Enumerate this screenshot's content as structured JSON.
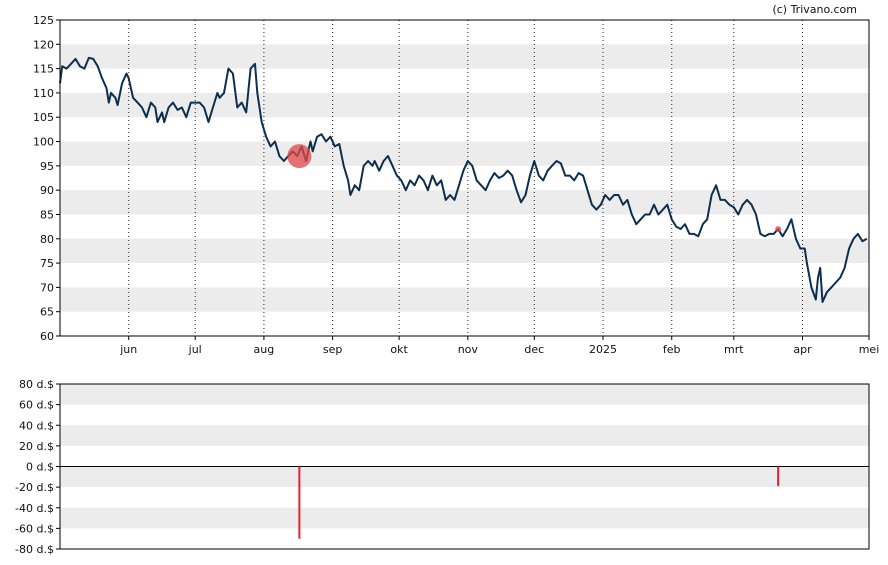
{
  "credit": "(c) Trivano.com",
  "colors": {
    "price_line": "#0d2f4f",
    "band": "#ececec",
    "event_marker": "#e04848",
    "volume_bar": "#e8202c",
    "axis": "#000000"
  },
  "chart_data": [
    {
      "type": "line",
      "title": "",
      "ylim": [
        60,
        125
      ],
      "y_ticks": [
        "60",
        "65",
        "70",
        "75",
        "80",
        "85",
        "90",
        "95",
        "100",
        "105",
        "110",
        "115",
        "120",
        "125"
      ],
      "x_ticks": [
        {
          "label": "jun",
          "date": "2024-06-01"
        },
        {
          "label": "jul",
          "date": "2024-07-01"
        },
        {
          "label": "aug",
          "date": "2024-08-01"
        },
        {
          "label": "sep",
          "date": "2024-09-01"
        },
        {
          "label": "okt",
          "date": "2024-10-01"
        },
        {
          "label": "nov",
          "date": "2024-11-01"
        },
        {
          "label": "dec",
          "date": "2024-12-01"
        },
        {
          "label": "2025",
          "date": "2025-01-01"
        },
        {
          "label": "feb",
          "date": "2025-02-01"
        },
        {
          "label": "mrt",
          "date": "2025-03-01"
        },
        {
          "label": "apr",
          "date": "2025-04-01"
        },
        {
          "label": "mei",
          "date": "2025-05-01"
        }
      ],
      "xlim": [
        "2024-05-01",
        "2025-05-01"
      ],
      "grid": "vertical dotted at month starts, alternating horizontal bands",
      "series": [
        {
          "points": [
            [
              "2024-05-01",
              112
            ],
            [
              "2024-05-02",
              115.5
            ],
            [
              "2024-05-04",
              115
            ],
            [
              "2024-05-06",
              116
            ],
            [
              "2024-05-08",
              117
            ],
            [
              "2024-05-10",
              115.5
            ],
            [
              "2024-05-12",
              115
            ],
            [
              "2024-05-14",
              117.2
            ],
            [
              "2024-05-16",
              117
            ],
            [
              "2024-05-18",
              115.5
            ],
            [
              "2024-05-20",
              113
            ],
            [
              "2024-05-22",
              111
            ],
            [
              "2024-05-23",
              108
            ],
            [
              "2024-05-24",
              110
            ],
            [
              "2024-05-26",
              109
            ],
            [
              "2024-05-27",
              107.5
            ],
            [
              "2024-05-29",
              112
            ],
            [
              "2024-05-31",
              114
            ],
            [
              "2024-06-01",
              113
            ],
            [
              "2024-06-03",
              109
            ],
            [
              "2024-06-05",
              108
            ],
            [
              "2024-06-07",
              107
            ],
            [
              "2024-06-09",
              105
            ],
            [
              "2024-06-11",
              108
            ],
            [
              "2024-06-13",
              107
            ],
            [
              "2024-06-14",
              104
            ],
            [
              "2024-06-16",
              106
            ],
            [
              "2024-06-17",
              104
            ],
            [
              "2024-06-19",
              107
            ],
            [
              "2024-06-21",
              108
            ],
            [
              "2024-06-23",
              106.5
            ],
            [
              "2024-06-25",
              107
            ],
            [
              "2024-06-27",
              105
            ],
            [
              "2024-06-29",
              108
            ],
            [
              "2024-07-01",
              108
            ],
            [
              "2024-07-03",
              108
            ],
            [
              "2024-07-05",
              107
            ],
            [
              "2024-07-07",
              104
            ],
            [
              "2024-07-09",
              107
            ],
            [
              "2024-07-11",
              110
            ],
            [
              "2024-07-12",
              109
            ],
            [
              "2024-07-14",
              110
            ],
            [
              "2024-07-16",
              115
            ],
            [
              "2024-07-18",
              114
            ],
            [
              "2024-07-20",
              107
            ],
            [
              "2024-07-22",
              108
            ],
            [
              "2024-07-24",
              106
            ],
            [
              "2024-07-26",
              115
            ],
            [
              "2024-07-28",
              116
            ],
            [
              "2024-07-29",
              110
            ],
            [
              "2024-07-31",
              104
            ],
            [
              "2024-08-02",
              101
            ],
            [
              "2024-08-04",
              99
            ],
            [
              "2024-08-06",
              100
            ],
            [
              "2024-08-08",
              97
            ],
            [
              "2024-08-10",
              96
            ],
            [
              "2024-08-12",
              97
            ],
            [
              "2024-08-14",
              98
            ],
            [
              "2024-08-16",
              97
            ],
            [
              "2024-08-18",
              99
            ],
            [
              "2024-08-20",
              96
            ],
            [
              "2024-08-22",
              100
            ],
            [
              "2024-08-23",
              98
            ],
            [
              "2024-08-25",
              101
            ],
            [
              "2024-08-27",
              101.5
            ],
            [
              "2024-08-29",
              100
            ],
            [
              "2024-08-31",
              101
            ],
            [
              "2024-09-02",
              99
            ],
            [
              "2024-09-04",
              99.5
            ],
            [
              "2024-09-06",
              95
            ],
            [
              "2024-09-08",
              92
            ],
            [
              "2024-09-09",
              89
            ],
            [
              "2024-09-11",
              91
            ],
            [
              "2024-09-13",
              90
            ],
            [
              "2024-09-15",
              95
            ],
            [
              "2024-09-17",
              96
            ],
            [
              "2024-09-19",
              95
            ],
            [
              "2024-09-20",
              96
            ],
            [
              "2024-09-22",
              94
            ],
            [
              "2024-09-24",
              96
            ],
            [
              "2024-09-26",
              97
            ],
            [
              "2024-09-28",
              95
            ],
            [
              "2024-09-30",
              93
            ],
            [
              "2024-10-02",
              92
            ],
            [
              "2024-10-04",
              90
            ],
            [
              "2024-10-06",
              92
            ],
            [
              "2024-10-08",
              91
            ],
            [
              "2024-10-10",
              93
            ],
            [
              "2024-10-12",
              92
            ],
            [
              "2024-10-14",
              90
            ],
            [
              "2024-10-16",
              93
            ],
            [
              "2024-10-18",
              91
            ],
            [
              "2024-10-20",
              92
            ],
            [
              "2024-10-22",
              88
            ],
            [
              "2024-10-24",
              89
            ],
            [
              "2024-10-26",
              88
            ],
            [
              "2024-10-28",
              91
            ],
            [
              "2024-10-30",
              94
            ],
            [
              "2024-11-01",
              96
            ],
            [
              "2024-11-03",
              95
            ],
            [
              "2024-11-05",
              92
            ],
            [
              "2024-11-07",
              91
            ],
            [
              "2024-11-09",
              90
            ],
            [
              "2024-11-11",
              92
            ],
            [
              "2024-11-13",
              93.5
            ],
            [
              "2024-11-15",
              92.5
            ],
            [
              "2024-11-17",
              93
            ],
            [
              "2024-11-19",
              94
            ],
            [
              "2024-11-21",
              93
            ],
            [
              "2024-11-23",
              90
            ],
            [
              "2024-11-25",
              87.5
            ],
            [
              "2024-11-27",
              89
            ],
            [
              "2024-11-29",
              93
            ],
            [
              "2024-12-01",
              96
            ],
            [
              "2024-12-03",
              93
            ],
            [
              "2024-12-05",
              92
            ],
            [
              "2024-12-07",
              94
            ],
            [
              "2024-12-09",
              95
            ],
            [
              "2024-12-11",
              96
            ],
            [
              "2024-12-13",
              95.5
            ],
            [
              "2024-12-15",
              93
            ],
            [
              "2024-12-17",
              93
            ],
            [
              "2024-12-19",
              92
            ],
            [
              "2024-12-21",
              93.5
            ],
            [
              "2024-12-23",
              93
            ],
            [
              "2024-12-25",
              90
            ],
            [
              "2024-12-27",
              87
            ],
            [
              "2024-12-29",
              86
            ],
            [
              "2024-12-31",
              87
            ],
            [
              "2025-01-02",
              89
            ],
            [
              "2025-01-04",
              88
            ],
            [
              "2025-01-06",
              89
            ],
            [
              "2025-01-08",
              89
            ],
            [
              "2025-01-10",
              87
            ],
            [
              "2025-01-12",
              88
            ],
            [
              "2025-01-14",
              85
            ],
            [
              "2025-01-16",
              83
            ],
            [
              "2025-01-18",
              84
            ],
            [
              "2025-01-20",
              85
            ],
            [
              "2025-01-22",
              85
            ],
            [
              "2025-01-24",
              87
            ],
            [
              "2025-01-26",
              85
            ],
            [
              "2025-01-28",
              86
            ],
            [
              "2025-01-30",
              87
            ],
            [
              "2025-02-01",
              84
            ],
            [
              "2025-02-03",
              82.5
            ],
            [
              "2025-02-05",
              82
            ],
            [
              "2025-02-07",
              83
            ],
            [
              "2025-02-09",
              81
            ],
            [
              "2025-02-11",
              81
            ],
            [
              "2025-02-13",
              80.5
            ],
            [
              "2025-02-15",
              83
            ],
            [
              "2025-02-17",
              84
            ],
            [
              "2025-02-19",
              89
            ],
            [
              "2025-02-21",
              91
            ],
            [
              "2025-02-23",
              88
            ],
            [
              "2025-02-25",
              88
            ],
            [
              "2025-02-27",
              87
            ],
            [
              "2025-03-01",
              86.5
            ],
            [
              "2025-03-03",
              85
            ],
            [
              "2025-03-05",
              87
            ],
            [
              "2025-03-07",
              88
            ],
            [
              "2025-03-09",
              87
            ],
            [
              "2025-03-11",
              85
            ],
            [
              "2025-03-13",
              81
            ],
            [
              "2025-03-15",
              80.5
            ],
            [
              "2025-03-17",
              81
            ],
            [
              "2025-03-19",
              81
            ],
            [
              "2025-03-21",
              82
            ],
            [
              "2025-03-23",
              80.5
            ],
            [
              "2025-03-25",
              82
            ],
            [
              "2025-03-27",
              84
            ],
            [
              "2025-03-29",
              80
            ],
            [
              "2025-03-31",
              78
            ],
            [
              "2025-04-02",
              78
            ],
            [
              "2025-04-03",
              75
            ],
            [
              "2025-04-05",
              70
            ],
            [
              "2025-04-07",
              67.5
            ],
            [
              "2025-04-08",
              72
            ],
            [
              "2025-04-09",
              74
            ],
            [
              "2025-04-10",
              67
            ],
            [
              "2025-04-12",
              69
            ],
            [
              "2025-04-14",
              70
            ],
            [
              "2025-04-16",
              71
            ],
            [
              "2025-04-18",
              72
            ],
            [
              "2025-04-20",
              74
            ],
            [
              "2025-04-22",
              78
            ],
            [
              "2025-04-24",
              80
            ],
            [
              "2025-04-26",
              81
            ],
            [
              "2025-04-28",
              79.5
            ],
            [
              "2025-04-30",
              80
            ]
          ]
        }
      ],
      "markers": [
        {
          "date": "2024-08-17",
          "value": 97,
          "size": "large"
        },
        {
          "date": "2025-03-21",
          "value": 82,
          "size": "small"
        }
      ]
    },
    {
      "type": "bar",
      "title": "",
      "ylim": [
        -80,
        80
      ],
      "y_ticks": [
        "80 d.$",
        "60 d.$",
        "40 d.$",
        "20 d.$",
        "0 d.$",
        "-20 d.$",
        "-40 d.$",
        "-60 d.$",
        "-80 d.$"
      ],
      "xlim": [
        "2024-05-01",
        "2025-05-01"
      ],
      "bars": [
        {
          "date": "2024-08-17",
          "value": -70
        },
        {
          "date": "2025-03-21",
          "value": -19
        }
      ]
    }
  ]
}
